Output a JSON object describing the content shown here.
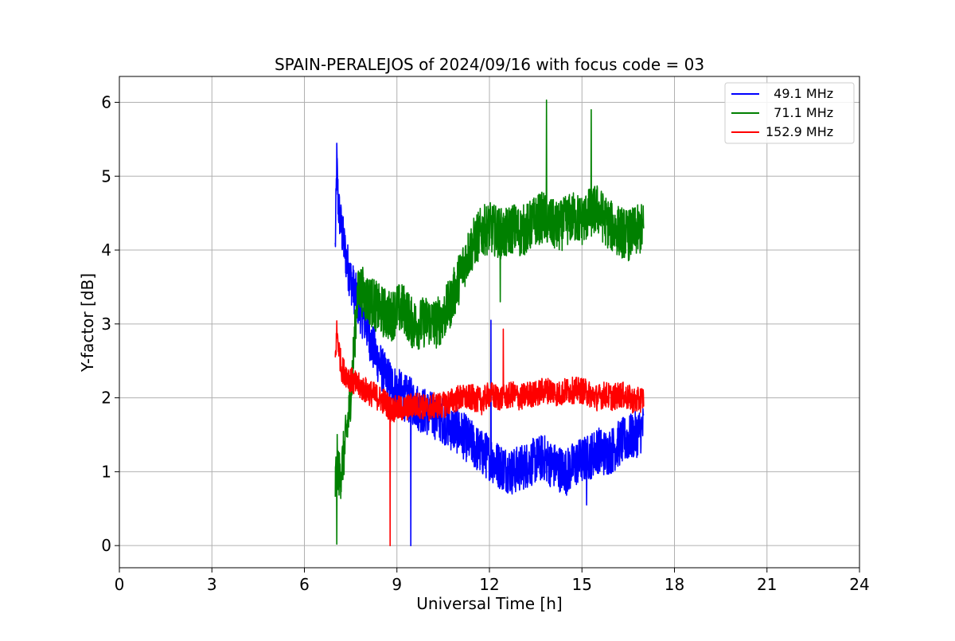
{
  "chart_data": {
    "type": "line",
    "title": "SPAIN-PERALEJOS of 2024/09/16 with focus code = 03",
    "xlabel": "Universal Time [h]",
    "ylabel": "Y-factor [dB]",
    "xlim": [
      0,
      24
    ],
    "ylim": [
      -0.3,
      6.35
    ],
    "xticks": [
      0,
      3,
      6,
      9,
      12,
      15,
      18,
      21,
      24
    ],
    "yticks": [
      0,
      1,
      2,
      3,
      4,
      5,
      6
    ],
    "grid": true,
    "legend": {
      "placement": "top-right",
      "entries": [
        "  49.1 MHz",
        "  71.1 MHz",
        "152.9 MHz"
      ]
    },
    "series": [
      {
        "name": "  49.1 MHz",
        "color": "#0000ff",
        "x": [
          7.0,
          7.05,
          7.1,
          7.2,
          7.35,
          7.5,
          7.65,
          7.8,
          8.0,
          8.2,
          8.4,
          8.6,
          8.8,
          9.0,
          9.25,
          9.5,
          9.75,
          10.0,
          10.25,
          10.5,
          10.75,
          11.0,
          11.25,
          11.5,
          11.75,
          12.0,
          12.25,
          12.5,
          12.75,
          13.0,
          13.25,
          13.5,
          13.75,
          14.0,
          14.25,
          14.5,
          14.75,
          15.0,
          15.25,
          15.5,
          15.75,
          16.0,
          16.25,
          16.5,
          16.75,
          17.0
        ],
        "y": [
          4.0,
          5.2,
          4.6,
          4.3,
          3.9,
          3.6,
          3.4,
          3.2,
          3.0,
          2.7,
          2.5,
          2.3,
          2.2,
          2.1,
          2.0,
          1.95,
          1.85,
          1.8,
          1.75,
          1.7,
          1.6,
          1.55,
          1.45,
          1.35,
          1.25,
          1.2,
          1.1,
          1.05,
          1.0,
          1.05,
          1.1,
          1.15,
          1.2,
          1.1,
          1.05,
          1.0,
          1.1,
          1.15,
          1.2,
          1.3,
          1.25,
          1.3,
          1.4,
          1.45,
          1.5,
          1.6
        ],
        "noise": 0.32
      },
      {
        "name": "  71.1 MHz",
        "color": "#008000",
        "x": [
          7.0,
          7.05,
          7.15,
          7.3,
          7.45,
          7.6,
          7.7,
          7.8,
          8.0,
          8.2,
          8.4,
          8.6,
          8.8,
          9.0,
          9.25,
          9.5,
          9.75,
          10.0,
          10.25,
          10.5,
          10.75,
          11.0,
          11.25,
          11.5,
          11.75,
          12.0,
          12.25,
          12.5,
          12.75,
          13.0,
          13.25,
          13.5,
          13.75,
          14.0,
          14.25,
          14.5,
          14.75,
          15.0,
          15.25,
          15.5,
          15.75,
          16.0,
          16.25,
          16.5,
          16.75,
          17.0
        ],
        "y": [
          0.8,
          1.2,
          0.9,
          1.3,
          1.8,
          2.6,
          3.3,
          3.5,
          3.35,
          3.3,
          3.2,
          3.15,
          3.1,
          3.2,
          3.2,
          3.0,
          3.0,
          3.05,
          3.0,
          3.1,
          3.3,
          3.6,
          3.9,
          4.1,
          4.25,
          4.3,
          4.25,
          4.2,
          4.3,
          4.25,
          4.3,
          4.4,
          4.45,
          4.35,
          4.3,
          4.4,
          4.45,
          4.4,
          4.5,
          4.55,
          4.4,
          4.3,
          4.25,
          4.2,
          4.25,
          4.3
        ],
        "noise": 0.35
      },
      {
        "name": "152.9 MHz",
        "color": "#ff0000",
        "x": [
          7.0,
          7.05,
          7.2,
          7.4,
          7.6,
          7.8,
          8.0,
          8.2,
          8.4,
          8.6,
          8.8,
          9.0,
          9.25,
          9.5,
          9.75,
          10.0,
          10.25,
          10.5,
          10.75,
          11.0,
          11.25,
          11.5,
          11.75,
          12.0,
          12.25,
          12.5,
          12.75,
          13.0,
          13.25,
          13.5,
          13.75,
          14.0,
          14.25,
          14.5,
          14.75,
          15.0,
          15.25,
          15.5,
          15.75,
          16.0,
          16.25,
          16.5,
          16.75,
          17.0
        ],
        "y": [
          2.5,
          2.9,
          2.4,
          2.3,
          2.2,
          2.15,
          2.1,
          2.05,
          2.0,
          1.95,
          1.85,
          1.85,
          1.85,
          1.9,
          1.9,
          1.85,
          1.9,
          1.9,
          1.95,
          2.0,
          2.0,
          2.0,
          1.95,
          2.05,
          2.0,
          2.0,
          2.05,
          2.0,
          2.05,
          2.05,
          2.1,
          2.1,
          2.05,
          2.1,
          2.1,
          2.1,
          2.05,
          2.0,
          2.05,
          2.0,
          2.05,
          2.0,
          1.95,
          2.0
        ],
        "noise": 0.18
      }
    ],
    "spikes": [
      {
        "series": 0,
        "x": 9.45,
        "y": 0.0
      },
      {
        "series": 0,
        "x": 12.05,
        "y": 3.05
      },
      {
        "series": 0,
        "x": 15.15,
        "y": 0.55
      },
      {
        "series": 1,
        "x": 7.05,
        "y": 0.02
      },
      {
        "series": 1,
        "x": 13.85,
        "y": 6.03
      },
      {
        "series": 1,
        "x": 15.3,
        "y": 5.9
      },
      {
        "series": 1,
        "x": 12.35,
        "y": 3.3
      },
      {
        "series": 2,
        "x": 8.78,
        "y": 0.0
      },
      {
        "series": 2,
        "x": 12.45,
        "y": 2.93
      }
    ]
  }
}
